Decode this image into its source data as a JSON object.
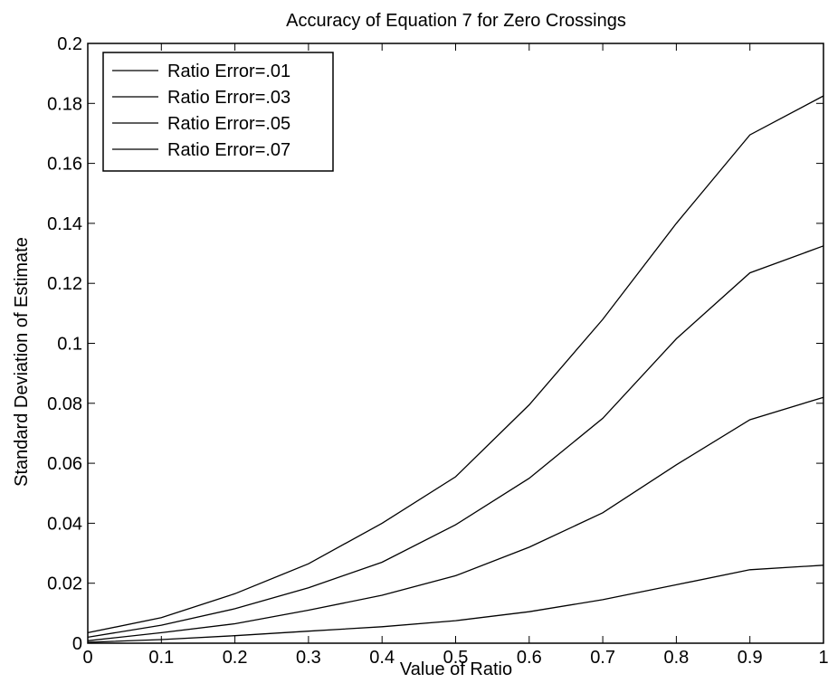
{
  "chart_data": {
    "type": "line",
    "title": "Accuracy of Equation 7 for Zero Crossings",
    "xlabel": "Value of Ratio",
    "ylabel": "Standard Deviation of Estimate",
    "xlim": [
      0,
      1
    ],
    "ylim": [
      0,
      0.2
    ],
    "x_ticks": [
      "0",
      "0.1",
      "0.2",
      "0.3",
      "0.4",
      "0.5",
      "0.6",
      "0.7",
      "0.8",
      "0.9",
      "1"
    ],
    "y_ticks": [
      "0",
      "0.02",
      "0.04",
      "0.06",
      "0.08",
      "0.1",
      "0.12",
      "0.14",
      "0.16",
      "0.18",
      "0.2"
    ],
    "grid": false,
    "legend_position": "top-left",
    "line_color": "#000000",
    "x": [
      0,
      0.1,
      0.2,
      0.3,
      0.4,
      0.5,
      0.6,
      0.7,
      0.8,
      0.9,
      1.0
    ],
    "series": [
      {
        "name": "Ratio Error=.01",
        "values": [
          0.0003,
          0.0012,
          0.0025,
          0.004,
          0.0055,
          0.0075,
          0.0105,
          0.0145,
          0.0195,
          0.0245,
          0.026
        ]
      },
      {
        "name": "Ratio Error=.03",
        "values": [
          0.0008,
          0.0035,
          0.0065,
          0.011,
          0.016,
          0.0225,
          0.032,
          0.0435,
          0.0595,
          0.0745,
          0.082
        ]
      },
      {
        "name": "Ratio Error=.05",
        "values": [
          0.002,
          0.006,
          0.0115,
          0.0185,
          0.027,
          0.0395,
          0.055,
          0.075,
          0.1015,
          0.1235,
          0.1325
        ]
      },
      {
        "name": "Ratio Error=.07",
        "values": [
          0.0035,
          0.0085,
          0.0165,
          0.0265,
          0.04,
          0.0555,
          0.0795,
          0.108,
          0.14,
          0.1695,
          0.1825
        ]
      }
    ]
  }
}
